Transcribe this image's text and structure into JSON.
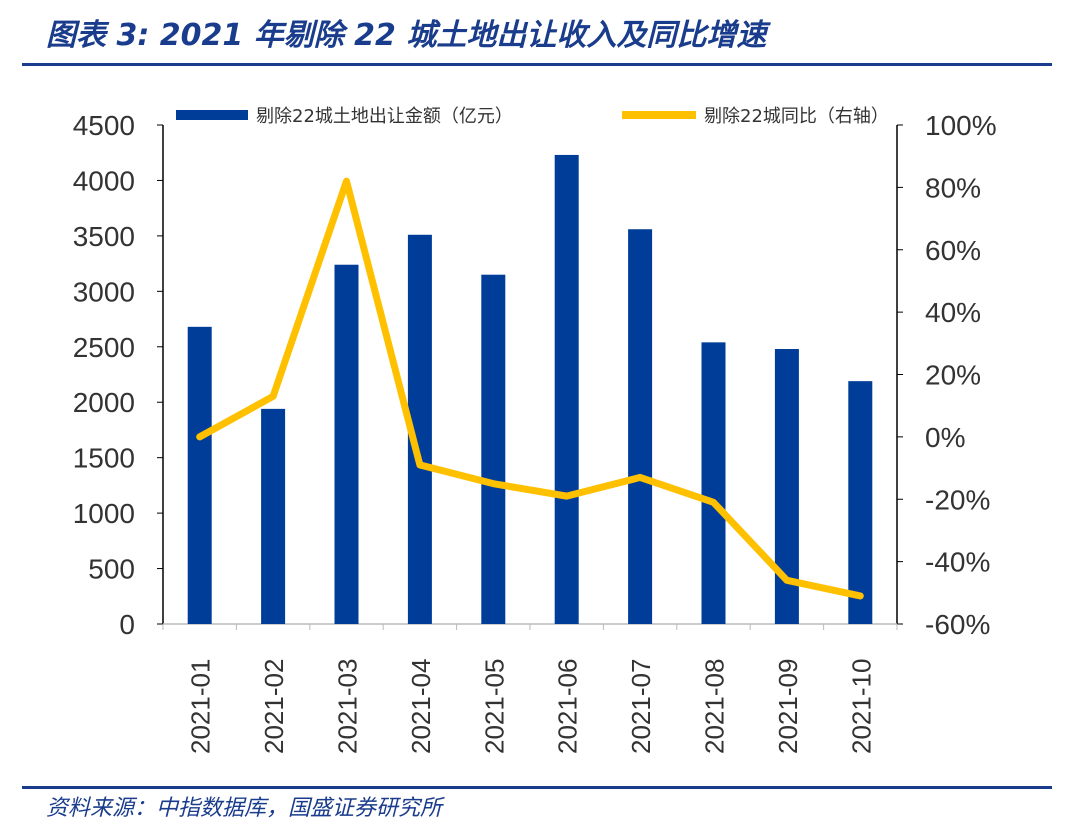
{
  "title": "图表 3:  2021 年剔除 22 城土地出让收入及同比增速",
  "source": "资料来源：中指数据库，国盛证券研究所",
  "chart_data": {
    "type": "bar+line",
    "categories": [
      "2021-01",
      "2021-02",
      "2021-03",
      "2021-04",
      "2021-05",
      "2021-06",
      "2021-07",
      "2021-08",
      "2021-09",
      "2021-10"
    ],
    "series": [
      {
        "name": "剔除22城土地出让金额（亿元）",
        "type": "bar",
        "axis": "left",
        "color": "#003d99",
        "values": [
          2680,
          1940,
          3240,
          3510,
          3150,
          4230,
          3560,
          2540,
          2480,
          2190
        ]
      },
      {
        "name": "剔除22城同比（右轴）",
        "type": "line",
        "axis": "right",
        "color": "#ffc000",
        "values": [
          0,
          13,
          82,
          -9,
          -15,
          -19,
          -13,
          -21,
          -46,
          -51
        ]
      }
    ],
    "left_axis": {
      "ylim": [
        0,
        4500
      ],
      "ticks": [
        "0",
        "500",
        "1000",
        "1500",
        "2000",
        "2500",
        "3000",
        "3500",
        "4000",
        "4500"
      ]
    },
    "right_axis": {
      "ylim": [
        -60,
        100
      ],
      "ticks": [
        "-60%",
        "-40%",
        "-20%",
        "0%",
        "20%",
        "40%",
        "60%",
        "80%",
        "100%"
      ]
    },
    "legend_position": "top",
    "grid": false
  }
}
